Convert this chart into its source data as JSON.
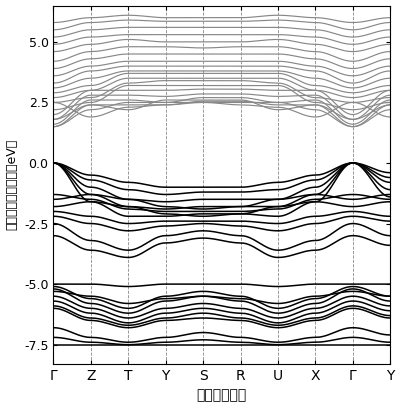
{
  "kpoint_labels": [
    "Γ",
    "Z",
    "T",
    "Y",
    "S",
    "R",
    "U",
    "X",
    "Γ",
    "Y"
  ],
  "ylabel": "電子のエネルギー（eV）",
  "xlabel": "波数ベクトル",
  "ylim": [
    -8.3,
    6.5
  ],
  "yticks": [
    -7.5,
    -5.0,
    -2.5,
    0.0,
    2.5,
    5.0
  ],
  "ytick_labels": [
    "-7.5",
    "-5.0",
    "-2.5",
    "0.0",
    "2.5",
    "5.0"
  ],
  "n_kpoints": 300,
  "black_color": "#000000",
  "gray_color": "#888888",
  "bg_color": "#ffffff",
  "linewidth_black": 1.1,
  "linewidth_gray": 0.85,
  "dpi": 100,
  "fig_width": 4.0,
  "fig_height": 4.08
}
